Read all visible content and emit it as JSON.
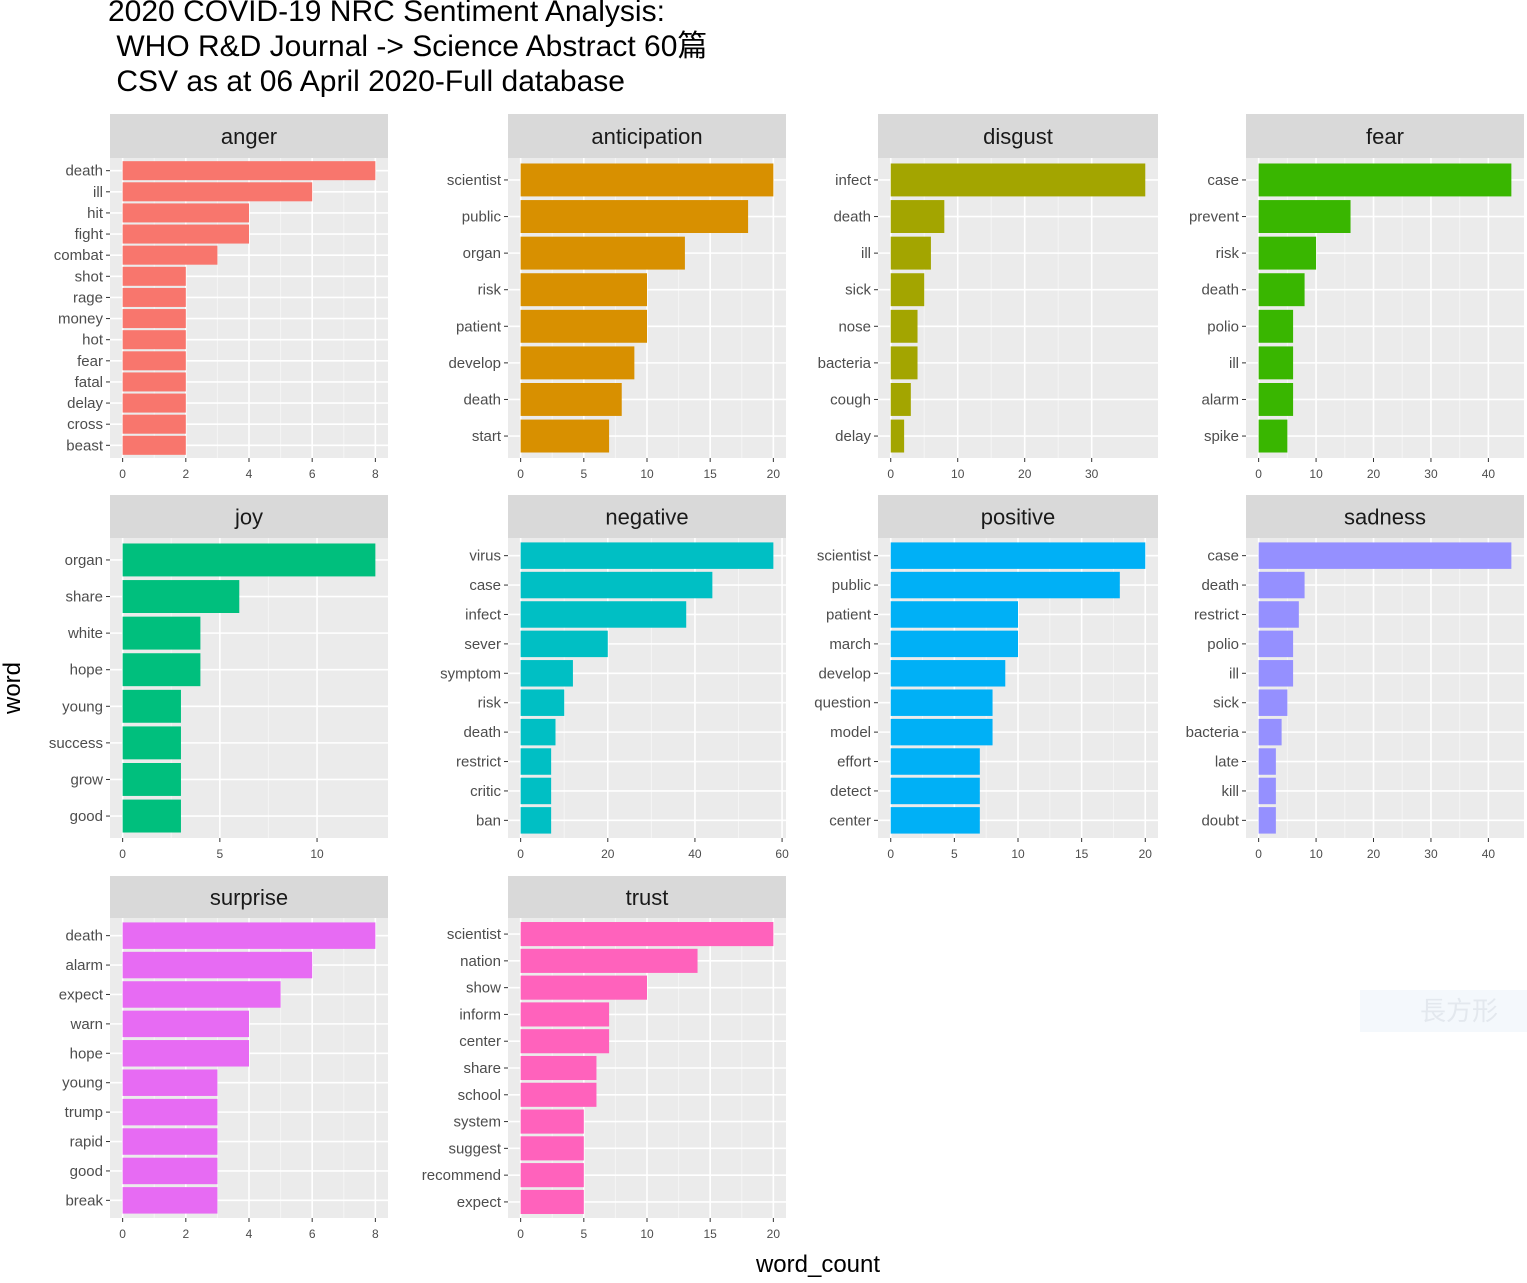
{
  "chart_data": {
    "type": "bar",
    "title": [
      "2020 COVID-19 NRC Sentiment Analysis:",
      " WHO R&D Journal -> Science Abstract 60篇",
      " CSV as at 06 April 2020-Full database"
    ],
    "xlabel": "word_count",
    "ylabel": "word",
    "grid": true,
    "facets": [
      {
        "name": "anger",
        "color": "#F8766D",
        "ticks": [
          0,
          2,
          4,
          6,
          8
        ],
        "xlim": [
          0,
          8
        ],
        "words": [
          "death",
          "ill",
          "hit",
          "fight",
          "combat",
          "shot",
          "rage",
          "money",
          "hot",
          "fear",
          "fatal",
          "delay",
          "cross",
          "beast"
        ],
        "values": [
          8,
          6,
          4,
          4,
          3,
          2,
          2,
          2,
          2,
          2,
          2,
          2,
          2,
          2
        ]
      },
      {
        "name": "anticipation",
        "color": "#D89000",
        "ticks": [
          0,
          5,
          10,
          15,
          20
        ],
        "xlim": [
          0,
          20
        ],
        "words": [
          "scientist",
          "public",
          "organ",
          "risk",
          "patient",
          "develop",
          "death",
          "start"
        ],
        "values": [
          20,
          18,
          13,
          10,
          10,
          9,
          8,
          7
        ]
      },
      {
        "name": "disgust",
        "color": "#A3A500",
        "ticks": [
          0,
          10,
          20,
          30
        ],
        "xlim": [
          0,
          38
        ],
        "words": [
          "infect",
          "death",
          "ill",
          "sick",
          "nose",
          "bacteria",
          "cough",
          "delay"
        ],
        "values": [
          38,
          8,
          6,
          5,
          4,
          4,
          3,
          2
        ]
      },
      {
        "name": "fear",
        "color": "#39B600",
        "ticks": [
          0,
          10,
          20,
          30,
          40
        ],
        "xlim": [
          0,
          44
        ],
        "words": [
          "case",
          "prevent",
          "risk",
          "death",
          "polio",
          "ill",
          "alarm",
          "spike"
        ],
        "values": [
          44,
          16,
          10,
          8,
          6,
          6,
          6,
          5
        ]
      },
      {
        "name": "joy",
        "color": "#00BF7D",
        "ticks": [
          0,
          5,
          10
        ],
        "xlim": [
          0,
          13
        ],
        "words": [
          "organ",
          "share",
          "white",
          "hope",
          "young",
          "success",
          "grow",
          "good"
        ],
        "values": [
          13,
          6,
          4,
          4,
          3,
          3,
          3,
          3
        ]
      },
      {
        "name": "negative",
        "color": "#00BFC4",
        "ticks": [
          0,
          20,
          40,
          60
        ],
        "xlim": [
          0,
          58
        ],
        "words": [
          "virus",
          "case",
          "infect",
          "sever",
          "symptom",
          "risk",
          "death",
          "restrict",
          "critic",
          "ban"
        ],
        "values": [
          58,
          44,
          38,
          20,
          12,
          10,
          8,
          7,
          7,
          7
        ]
      },
      {
        "name": "positive",
        "color": "#00B0F6",
        "ticks": [
          0,
          5,
          10,
          15,
          20
        ],
        "xlim": [
          0,
          20
        ],
        "words": [
          "scientist",
          "public",
          "patient",
          "march",
          "develop",
          "question",
          "model",
          "effort",
          "detect",
          "center"
        ],
        "values": [
          20,
          18,
          10,
          10,
          9,
          8,
          8,
          7,
          7,
          7
        ]
      },
      {
        "name": "sadness",
        "color": "#9590FF",
        "ticks": [
          0,
          10,
          20,
          30,
          40
        ],
        "xlim": [
          0,
          44
        ],
        "words": [
          "case",
          "death",
          "restrict",
          "polio",
          "ill",
          "sick",
          "bacteria",
          "late",
          "kill",
          "doubt"
        ],
        "values": [
          44,
          8,
          7,
          6,
          6,
          5,
          4,
          3,
          3,
          3
        ]
      },
      {
        "name": "surprise",
        "color": "#E76BF3",
        "ticks": [
          0,
          2,
          4,
          6,
          8
        ],
        "xlim": [
          0,
          8
        ],
        "words": [
          "death",
          "alarm",
          "expect",
          "warn",
          "hope",
          "young",
          "trump",
          "rapid",
          "good",
          "break"
        ],
        "values": [
          8,
          6,
          5,
          4,
          4,
          3,
          3,
          3,
          3,
          3
        ]
      },
      {
        "name": "trust",
        "color": "#FF62BC",
        "ticks": [
          0,
          5,
          10,
          15,
          20
        ],
        "xlim": [
          0,
          20
        ],
        "words": [
          "scientist",
          "nation",
          "show",
          "inform",
          "center",
          "share",
          "school",
          "system",
          "suggest",
          "recommend",
          "expect"
        ],
        "values": [
          20,
          14,
          10,
          7,
          7,
          6,
          6,
          5,
          5,
          5,
          5
        ]
      }
    ]
  },
  "watermark": "長方形"
}
